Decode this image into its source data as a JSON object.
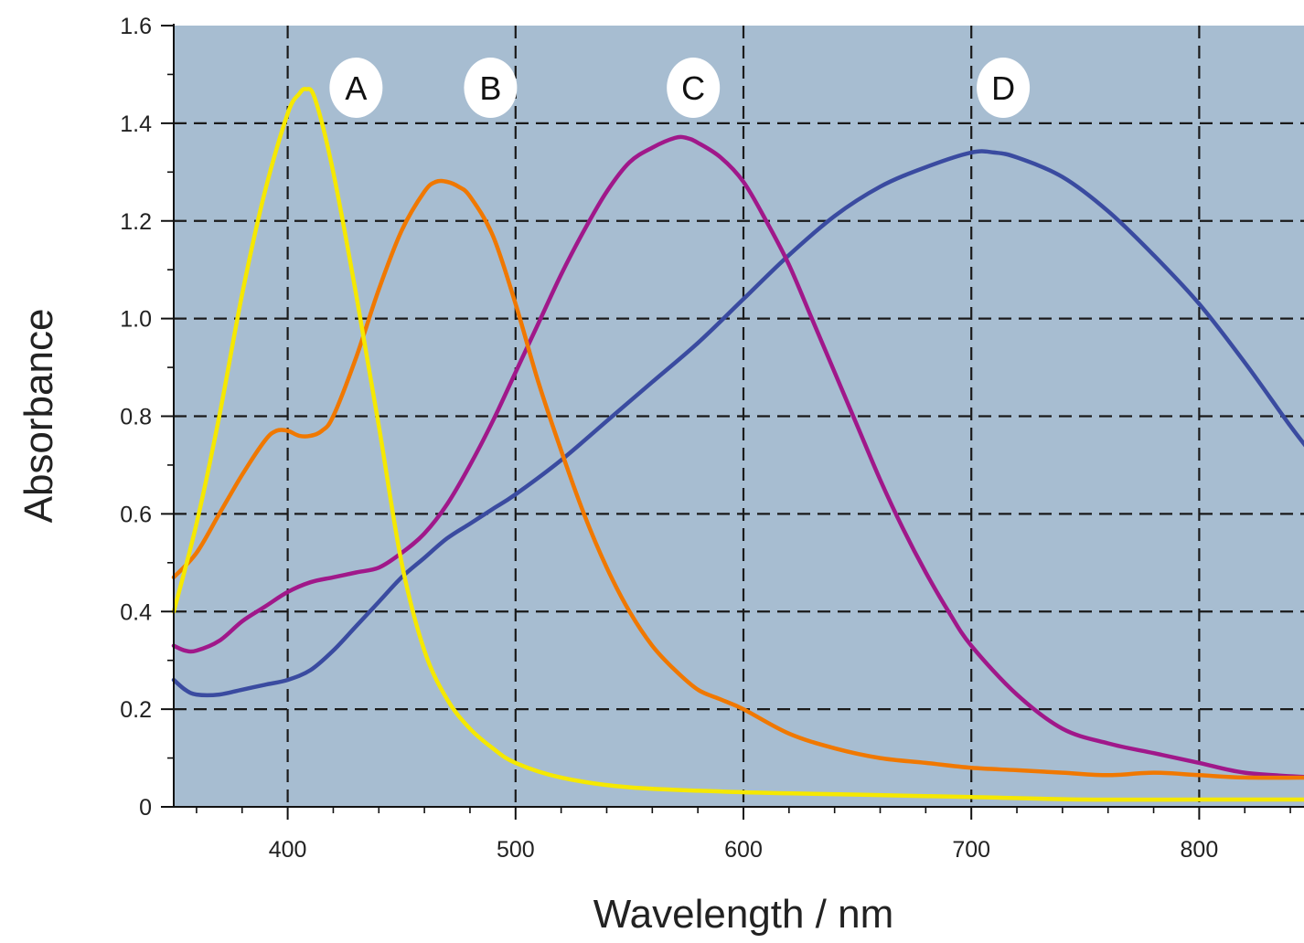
{
  "chart_data": {
    "type": "line",
    "title": "",
    "xlabel": "Wavelength / nm",
    "ylabel": "Absorbance",
    "xlim": [
      350,
      850
    ],
    "ylim": [
      0,
      1.6
    ],
    "xticks": [
      400,
      500,
      600,
      700,
      800
    ],
    "xtick_labels": [
      "400",
      "500",
      "600",
      "700",
      "800"
    ],
    "yticks": [
      0,
      0.2,
      0.4,
      0.6,
      0.8,
      1.0,
      1.2,
      1.4,
      1.6
    ],
    "ytick_labels": [
      "0",
      "0.2",
      "0.4",
      "0.6",
      "0.8",
      "1.0",
      "1.2",
      "1.4",
      "1.6"
    ],
    "grid": true,
    "background_color": "#a7bdd1",
    "series": [
      {
        "name": "A",
        "color": "#f5e800",
        "label_x": 430,
        "x": [
          350,
          360,
          370,
          380,
          390,
          400,
          405,
          408,
          412,
          420,
          430,
          440,
          450,
          460,
          470,
          480,
          490,
          500,
          520,
          550,
          600,
          650,
          700,
          750,
          800,
          850
        ],
        "y": [
          0.4,
          0.58,
          0.8,
          1.05,
          1.26,
          1.42,
          1.46,
          1.47,
          1.45,
          1.3,
          1.05,
          0.78,
          0.5,
          0.32,
          0.22,
          0.16,
          0.12,
          0.09,
          0.06,
          0.04,
          0.03,
          0.025,
          0.02,
          0.015,
          0.015,
          0.015
        ]
      },
      {
        "name": "B",
        "color": "#f07800",
        "label_x": 489,
        "x": [
          350,
          360,
          370,
          380,
          390,
          395,
          400,
          405,
          410,
          415,
          420,
          430,
          440,
          450,
          460,
          465,
          470,
          475,
          480,
          490,
          500,
          510,
          520,
          530,
          540,
          550,
          560,
          570,
          580,
          590,
          600,
          620,
          640,
          660,
          680,
          700,
          720,
          740,
          760,
          780,
          800,
          820,
          850
        ],
        "y": [
          0.47,
          0.52,
          0.6,
          0.68,
          0.75,
          0.77,
          0.77,
          0.76,
          0.76,
          0.77,
          0.8,
          0.92,
          1.06,
          1.18,
          1.26,
          1.28,
          1.28,
          1.27,
          1.25,
          1.17,
          1.03,
          0.87,
          0.73,
          0.6,
          0.49,
          0.4,
          0.33,
          0.28,
          0.24,
          0.22,
          0.2,
          0.15,
          0.12,
          0.1,
          0.09,
          0.08,
          0.075,
          0.07,
          0.065,
          0.07,
          0.065,
          0.06,
          0.06
        ]
      },
      {
        "name": "C",
        "color": "#a0188a",
        "label_x": 578,
        "x": [
          350,
          355,
          360,
          370,
          380,
          390,
          400,
          410,
          420,
          430,
          440,
          450,
          460,
          470,
          480,
          490,
          500,
          510,
          520,
          530,
          540,
          550,
          560,
          570,
          575,
          580,
          590,
          600,
          610,
          620,
          630,
          640,
          650,
          660,
          670,
          680,
          690,
          700,
          720,
          740,
          760,
          780,
          800,
          820,
          850
        ],
        "y": [
          0.33,
          0.32,
          0.32,
          0.34,
          0.38,
          0.41,
          0.44,
          0.46,
          0.47,
          0.48,
          0.49,
          0.52,
          0.56,
          0.62,
          0.7,
          0.79,
          0.89,
          0.99,
          1.09,
          1.18,
          1.26,
          1.32,
          1.35,
          1.37,
          1.37,
          1.36,
          1.33,
          1.28,
          1.2,
          1.11,
          1.0,
          0.89,
          0.78,
          0.67,
          0.57,
          0.48,
          0.4,
          0.33,
          0.23,
          0.16,
          0.13,
          0.11,
          0.09,
          0.07,
          0.06
        ]
      },
      {
        "name": "D",
        "color": "#3a4ba0",
        "label_x": 714,
        "x": [
          350,
          355,
          360,
          370,
          380,
          390,
          400,
          410,
          420,
          430,
          440,
          450,
          460,
          470,
          480,
          490,
          500,
          520,
          540,
          560,
          580,
          600,
          620,
          640,
          660,
          680,
          700,
          710,
          720,
          740,
          760,
          780,
          800,
          820,
          840,
          850
        ],
        "y": [
          0.26,
          0.24,
          0.23,
          0.23,
          0.24,
          0.25,
          0.26,
          0.28,
          0.32,
          0.37,
          0.42,
          0.47,
          0.51,
          0.55,
          0.58,
          0.61,
          0.64,
          0.71,
          0.79,
          0.87,
          0.95,
          1.04,
          1.13,
          1.21,
          1.27,
          1.31,
          1.34,
          1.34,
          1.33,
          1.29,
          1.22,
          1.13,
          1.03,
          0.91,
          0.78,
          0.72
        ]
      }
    ]
  }
}
